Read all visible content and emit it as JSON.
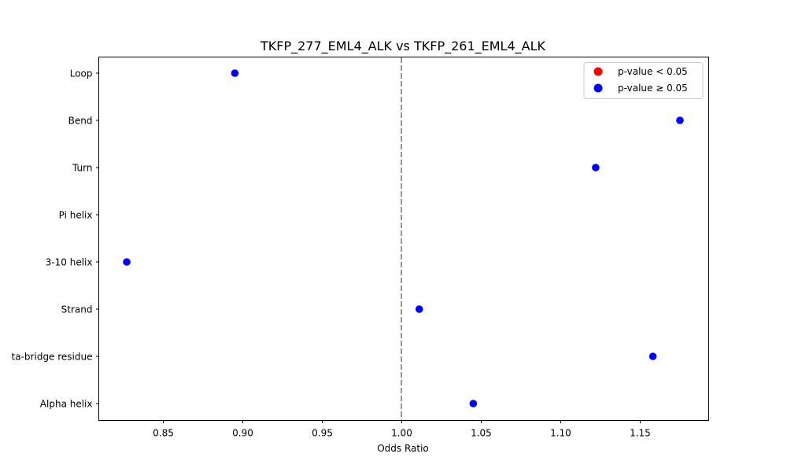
{
  "chart_data": {
    "type": "scatter",
    "title": "TKFP_277_EML4_ALK vs TKFP_261_EML4_ALK",
    "xlabel": "Odds Ratio",
    "ylabel": "",
    "xlim": [
      0.8094,
      1.1931
    ],
    "xticks": [
      0.85,
      0.9,
      0.95,
      1.0,
      1.05,
      1.1,
      1.15
    ],
    "xtick_labels": [
      "0.85",
      "0.90",
      "0.95",
      "1.00",
      "1.05",
      "1.10",
      "1.15"
    ],
    "categories": [
      "Alpha helix",
      "Beta-bridge residue",
      "Strand",
      "3-10 helix",
      "Pi helix",
      "Turn",
      "Bend",
      "Loop"
    ],
    "ytick_labels_visible": [
      "Alpha helix",
      "ta-bridge residue",
      "Strand",
      "3-10 helix",
      "Pi helix",
      "Turn",
      "Bend",
      "Loop"
    ],
    "points": [
      {
        "category": "Alpha helix",
        "odds_ratio": 1.045,
        "significant": false
      },
      {
        "category": "Beta-bridge residue",
        "odds_ratio": 1.158,
        "significant": false
      },
      {
        "category": "Strand",
        "odds_ratio": 1.011,
        "significant": false
      },
      {
        "category": "3-10 helix",
        "odds_ratio": 0.827,
        "significant": false
      },
      {
        "category": "Pi helix",
        "odds_ratio": null,
        "significant": null
      },
      {
        "category": "Turn",
        "odds_ratio": 1.122,
        "significant": false
      },
      {
        "category": "Bend",
        "odds_ratio": 1.175,
        "significant": false
      },
      {
        "category": "Loop",
        "odds_ratio": 0.895,
        "significant": false
      }
    ],
    "reference_line": {
      "x": 1.0,
      "style": "dashed",
      "color": "#808080"
    },
    "legend": {
      "position": "upper right",
      "entries": [
        {
          "label": "p-value < 0.05",
          "color": "#ff0000"
        },
        {
          "label": "p-value ≥ 0.05",
          "color": "#0000ff"
        }
      ]
    },
    "grid": false
  }
}
